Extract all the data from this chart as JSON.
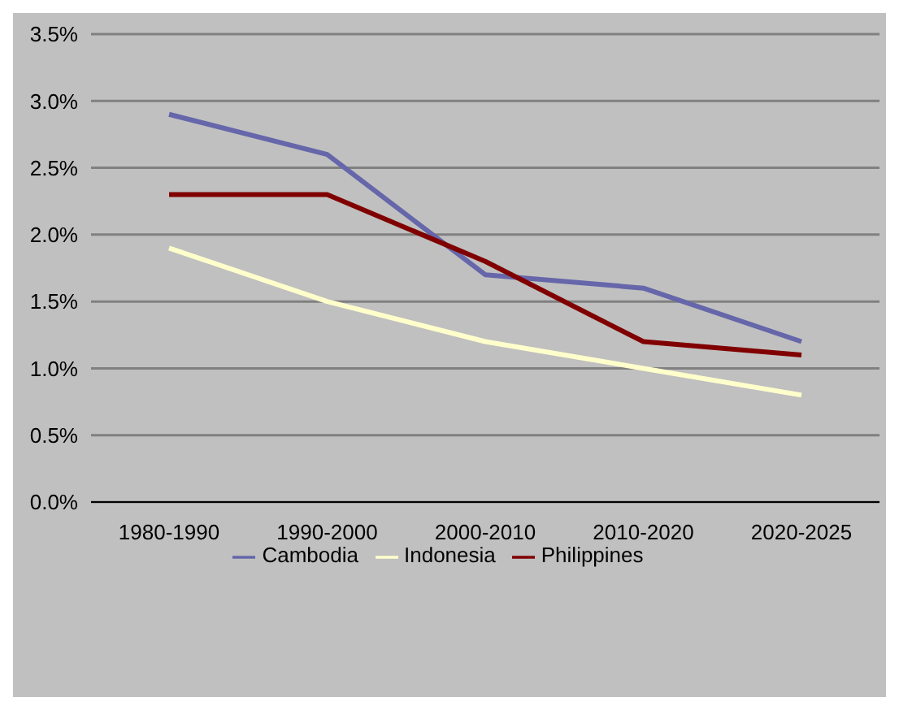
{
  "chart_data": {
    "type": "line",
    "categories": [
      "1980-1990",
      "1990-2000",
      "2000-2010",
      "2010-2020",
      "2020-2025"
    ],
    "series": [
      {
        "name": "Cambodia",
        "color": "#6666aa",
        "values": [
          2.9,
          2.6,
          1.7,
          1.6,
          1.2
        ]
      },
      {
        "name": "Indonesia",
        "color": "#ffffcc",
        "values": [
          1.9,
          1.5,
          1.2,
          1.0,
          0.8
        ]
      },
      {
        "name": "Philippines",
        "color": "#800000",
        "values": [
          2.3,
          2.3,
          1.8,
          1.2,
          1.1
        ]
      }
    ],
    "ylim": [
      0,
      3.5
    ],
    "yticks": [
      {
        "value": 0,
        "label": "0.0%"
      },
      {
        "value": 0.5,
        "label": "0.5%"
      },
      {
        "value": 1,
        "label": "1.0%"
      },
      {
        "value": 1.5,
        "label": "1.5%"
      },
      {
        "value": 2,
        "label": "2.0%"
      },
      {
        "value": 2.5,
        "label": "2.5%"
      },
      {
        "value": 3,
        "label": "3.0%"
      },
      {
        "value": 3.5,
        "label": "3.5%"
      }
    ],
    "grid": "y",
    "legend": "bottom",
    "marker": "none",
    "line_style": "solid"
  }
}
